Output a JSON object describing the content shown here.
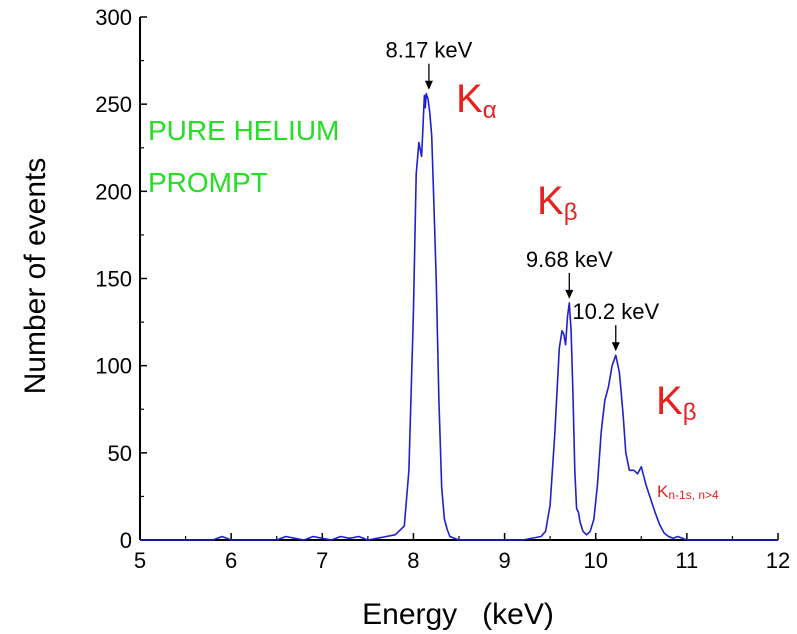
{
  "chart_data": {
    "type": "line",
    "xlabel": "Energy   (keV)",
    "ylabel": "Number of events",
    "xlim": [
      5,
      12
    ],
    "ylim": [
      0,
      300
    ],
    "xticks": [
      5,
      6,
      7,
      8,
      9,
      10,
      11,
      12
    ],
    "yticks": [
      0,
      50,
      100,
      150,
      200,
      250,
      300
    ],
    "grid": false,
    "series": [
      {
        "color": "#1f1fd0",
        "x": [
          5.0,
          5.8,
          5.85,
          5.9,
          5.95,
          6.0,
          6.5,
          6.6,
          6.7,
          6.8,
          6.9,
          7.0,
          7.1,
          7.2,
          7.3,
          7.4,
          7.5,
          7.6,
          7.7,
          7.8,
          7.9,
          7.95,
          8.0,
          8.03,
          8.06,
          8.09,
          8.12,
          8.13,
          8.14,
          8.16,
          8.18,
          8.2,
          8.22,
          8.25,
          8.28,
          8.31,
          8.34,
          8.37,
          8.4,
          8.45,
          8.5,
          8.6,
          8.8,
          9.0,
          9.2,
          9.4,
          9.45,
          9.5,
          9.55,
          9.6,
          9.63,
          9.65,
          9.67,
          9.69,
          9.71,
          9.73,
          9.75,
          9.77,
          9.79,
          9.81,
          9.83,
          9.86,
          9.9,
          9.94,
          9.98,
          10.02,
          10.06,
          10.1,
          10.14,
          10.18,
          10.22,
          10.26,
          10.3,
          10.33,
          10.37,
          10.42,
          10.46,
          10.5,
          10.55,
          10.6,
          10.65,
          10.7,
          10.75,
          10.8,
          10.85,
          10.9,
          11.0,
          12.0
        ],
        "y": [
          0,
          0,
          1,
          2,
          1,
          0,
          0,
          2,
          1,
          0,
          2,
          1,
          0,
          2,
          1,
          2,
          0,
          1,
          2,
          3,
          8,
          40,
          130,
          210,
          228,
          220,
          255,
          248,
          256,
          253,
          245,
          232,
          200,
          150,
          80,
          30,
          12,
          6,
          2,
          1,
          0,
          0,
          0,
          0,
          0,
          2,
          5,
          20,
          60,
          110,
          120,
          118,
          112,
          128,
          136,
          120,
          85,
          40,
          18,
          16,
          10,
          5,
          3,
          5,
          12,
          32,
          62,
          80,
          88,
          100,
          106,
          96,
          72,
          50,
          40,
          40,
          38,
          42,
          32,
          24,
          16,
          9,
          4,
          2,
          1,
          2,
          0,
          0
        ]
      }
    ],
    "annotations": [
      {
        "text": "8.17 keV",
        "x": 8.17,
        "y": 256
      },
      {
        "text": "9.68 keV",
        "x": 9.71,
        "y": 136
      },
      {
        "text": "10.2 keV",
        "x": 10.22,
        "y": 106
      }
    ],
    "labels": {
      "ka_main": "K",
      "ka_sub": "α",
      "kb1_main": "K",
      "kb1_sub": "β",
      "kb2_main": "K",
      "kb2_sub": "β",
      "kn_main": "K",
      "kn_sub": "n-1s, n>4",
      "green_line1": "PURE HELIUM",
      "green_line2": "PROMPT"
    },
    "colors": {
      "series": "#1f1fd0",
      "red_labels": "#e8211f",
      "green_text": "#22e022",
      "axes": "#000000"
    }
  }
}
